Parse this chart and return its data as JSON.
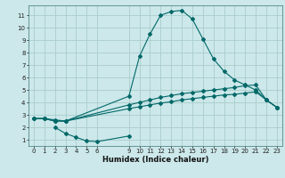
{
  "xlabel": "Humidex (Indice chaleur)",
  "bg_color": "#cce8ea",
  "grid_color": "#aacccc",
  "line_color": "#006868",
  "xlim": [
    -0.5,
    23.5
  ],
  "ylim": [
    0.5,
    11.8
  ],
  "xticks": [
    0,
    1,
    2,
    3,
    4,
    5,
    6,
    9,
    10,
    11,
    12,
    13,
    14,
    15,
    16,
    17,
    18,
    19,
    20,
    21,
    22,
    23
  ],
  "yticks": [
    1,
    2,
    3,
    4,
    5,
    6,
    7,
    8,
    9,
    10,
    11
  ],
  "line1_x": [
    0,
    1,
    2,
    3,
    9,
    10,
    11,
    12,
    13,
    14,
    15,
    16,
    17,
    18,
    19,
    20,
    21,
    22,
    23
  ],
  "line1_y": [
    2.7,
    2.7,
    2.6,
    2.5,
    4.5,
    7.7,
    9.5,
    11.0,
    11.3,
    11.4,
    10.7,
    9.1,
    7.5,
    6.5,
    5.8,
    5.4,
    5.0,
    4.2,
    3.6
  ],
  "line2_x": [
    0,
    1,
    2,
    3,
    9,
    10,
    11,
    12,
    13,
    14,
    15,
    16,
    17,
    18,
    19,
    20,
    21,
    22,
    23
  ],
  "line2_y": [
    2.7,
    2.7,
    2.5,
    2.5,
    3.8,
    4.0,
    4.2,
    4.4,
    4.55,
    4.7,
    4.8,
    4.9,
    5.0,
    5.1,
    5.2,
    5.35,
    5.4,
    4.2,
    3.6
  ],
  "line3_x": [
    0,
    1,
    2,
    3,
    9,
    10,
    11,
    12,
    13,
    14,
    15,
    16,
    17,
    18,
    19,
    20,
    21,
    22,
    23
  ],
  "line3_y": [
    2.7,
    2.7,
    2.5,
    2.5,
    3.5,
    3.65,
    3.8,
    3.95,
    4.05,
    4.2,
    4.3,
    4.4,
    4.5,
    4.6,
    4.65,
    4.75,
    4.85,
    4.2,
    3.6
  ],
  "line4_x": [
    2,
    3,
    4,
    5,
    6,
    9
  ],
  "line4_y": [
    2.0,
    1.5,
    1.2,
    0.9,
    0.85,
    1.3
  ],
  "tick_fontsize": 5,
  "xlabel_fontsize": 6,
  "marker_size": 2.0
}
